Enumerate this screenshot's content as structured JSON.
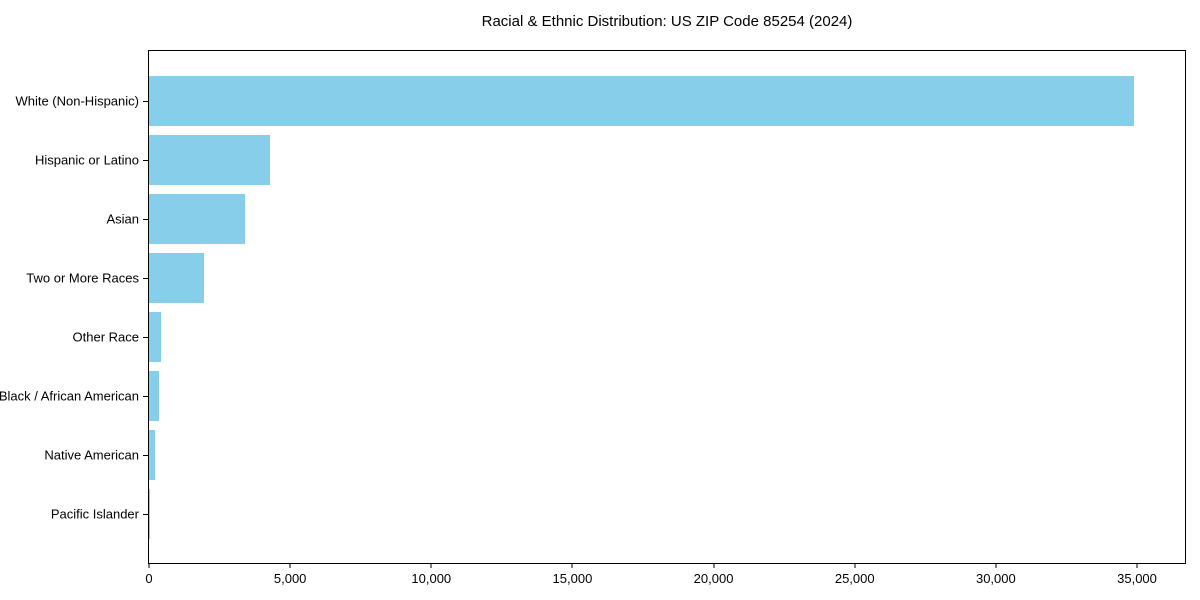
{
  "chart_data": {
    "type": "bar",
    "orientation": "horizontal",
    "title": "Racial & Ethnic Distribution: US ZIP Code 85254 (2024)",
    "categories": [
      "White (Non-Hispanic)",
      "Hispanic or Latino",
      "Asian",
      "Two or More Races",
      "Other Race",
      "Black / African American",
      "Native American",
      "Pacific Islander"
    ],
    "values": [
      34900,
      4270,
      3410,
      1940,
      440,
      370,
      220,
      40
    ],
    "xlabel": "",
    "ylabel": "",
    "xlim": [
      0,
      36700
    ],
    "x_ticks": [
      0,
      5000,
      10000,
      15000,
      20000,
      25000,
      30000,
      35000
    ],
    "x_tick_labels": [
      "0",
      "5,000",
      "10,000",
      "15,000",
      "20,000",
      "25,000",
      "30,000",
      "35,000"
    ],
    "grid": false,
    "legend": false,
    "bar_color": "#87CEEB",
    "axis_color": "#000000",
    "background_color": "#ffffff"
  }
}
